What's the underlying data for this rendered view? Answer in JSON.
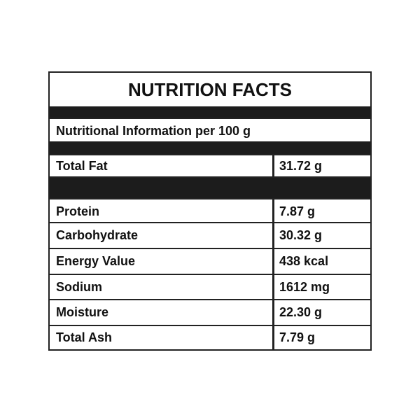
{
  "title": "NUTRITION FACTS",
  "info_label": "Nutritional Information per 100 g",
  "top_rows": [
    {
      "label": "Total Fat",
      "value": "31.72 g"
    }
  ],
  "rows": [
    {
      "label": "Protein",
      "value": "7.87 g"
    },
    {
      "label": "Carbohydrate",
      "value": "30.32 g"
    },
    {
      "label": "Energy Value",
      "value": "438 kcal"
    },
    {
      "label": "Sodium",
      "value": "1612 mg"
    },
    {
      "label": "Moisture",
      "value": "22.30 g"
    },
    {
      "label": "Total Ash",
      "value": "7.79 g"
    }
  ]
}
